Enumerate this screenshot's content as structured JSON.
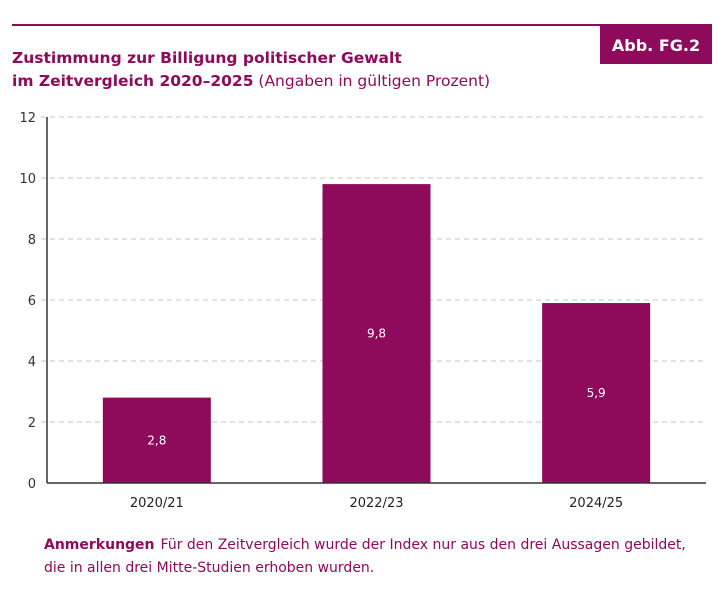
{
  "figure": {
    "badge": "Abb. FG.2",
    "title_line1": "Zustimmung zur Billigung politischer Gewalt",
    "title_line2_bold": "im Zeitvergleich 2020–2025",
    "title_line2_suffix": " (Angaben in gültigen Prozent)",
    "note_label": "Anmerkungen",
    "note_text": "Für den Zeitvergleich wurde der Index nur aus den drei Aussagen ge­bildet, die in allen drei Mitte-Studien erhoben wurden.",
    "accent_color": "#8e0a5a"
  },
  "chart_data": {
    "type": "bar",
    "title": "Zustimmung zur Billigung politischer Gewalt im Zeitvergleich 2020–2025 (Angaben in gültigen Prozent)",
    "xlabel": "",
    "ylabel": "",
    "categories": [
      "2020/21",
      "2022/23",
      "2024/25"
    ],
    "values": [
      2.8,
      9.8,
      5.9
    ],
    "value_labels": [
      "2,8",
      "9,8",
      "5,9"
    ],
    "ylim": [
      0,
      12
    ],
    "yticks": [
      0,
      2,
      4,
      6,
      8,
      10,
      12
    ],
    "grid": true,
    "legend": "none",
    "bar_color": "#8e0a5a"
  }
}
